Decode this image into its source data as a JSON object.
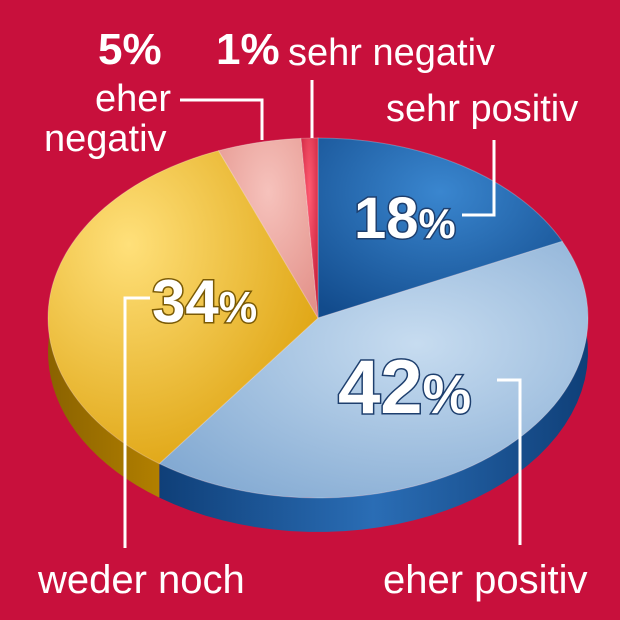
{
  "chart_data": {
    "type": "pie",
    "slices": [
      {
        "label": "sehr positiv",
        "value": 18,
        "value_label": "18%",
        "color": "#1a5fa8"
      },
      {
        "label": "eher positiv",
        "value": 42,
        "value_label": "42%",
        "color": "#8fb4d8"
      },
      {
        "label": "weder noch",
        "value": 34,
        "value_label": "34%",
        "color": "#e8b40a"
      },
      {
        "label": "eher negativ",
        "value": 5,
        "value_label": "5%",
        "color": "#e89c94"
      },
      {
        "label": "sehr negativ",
        "value": 1,
        "value_label": "1%",
        "color": "#d81840"
      }
    ],
    "style": "3d-exploded-pie",
    "background": "#c8103c"
  },
  "labels": {
    "sehr_positiv": "sehr positiv",
    "eher_positiv": "eher positiv",
    "weder_noch": "weder noch",
    "eher_negativ_line1": "eher",
    "eher_negativ_line2": "negativ",
    "sehr_negativ": "sehr negativ",
    "pct_18_num": "18",
    "pct_42_num": "42",
    "pct_34_num": "34",
    "pct_5": "5%",
    "pct_1": "1%",
    "pct_sign": "%"
  }
}
